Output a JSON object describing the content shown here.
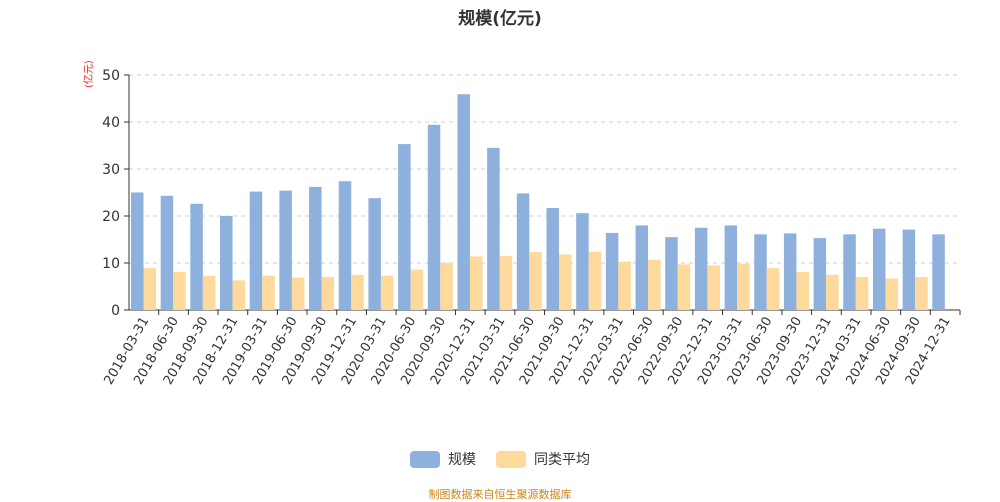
{
  "chart_data": {
    "type": "bar",
    "title": "规模(亿元)",
    "ylabel": "(亿元)",
    "ylim": [
      0,
      50
    ],
    "yticks": [
      0,
      10,
      20,
      30,
      40,
      50
    ],
    "categories": [
      "2018-03-31",
      "2018-06-30",
      "2018-09-30",
      "2018-12-31",
      "2019-03-31",
      "2019-06-30",
      "2019-09-30",
      "2019-12-31",
      "2020-03-31",
      "2020-06-30",
      "2020-09-30",
      "2020-12-31",
      "2021-03-31",
      "2021-06-30",
      "2021-09-30",
      "2021-12-31",
      "2022-03-31",
      "2022-06-30",
      "2022-09-30",
      "2022-12-31",
      "2023-03-31",
      "2023-06-30",
      "2023-09-30",
      "2023-12-31",
      "2024-03-31",
      "2024-06-30",
      "2024-09-30",
      "2024-12-31"
    ],
    "series": [
      {
        "name": "规模",
        "color": "#8eb0dc",
        "values": [
          25.0,
          24.3,
          22.6,
          20.0,
          25.2,
          25.4,
          26.2,
          27.4,
          23.8,
          35.3,
          39.4,
          45.9,
          34.5,
          24.8,
          21.7,
          20.6,
          16.4,
          18.0,
          15.5,
          17.5,
          18.0,
          16.1,
          16.3,
          15.3,
          16.1,
          17.3,
          17.1,
          16.1
        ]
      },
      {
        "name": "同类平均",
        "color": "#fdd99b",
        "values": [
          8.9,
          8.1,
          7.3,
          6.3,
          7.3,
          6.9,
          7.0,
          7.5,
          7.3,
          8.6,
          10.0,
          11.4,
          11.5,
          12.3,
          11.8,
          12.4,
          10.3,
          10.7,
          9.7,
          9.5,
          9.8,
          8.9,
          8.1,
          7.5,
          7.0,
          6.7,
          7.0,
          null
        ]
      }
    ],
    "grid": true,
    "legend_position": "bottom"
  },
  "source_note": "制图数据来自恒生聚源数据库"
}
